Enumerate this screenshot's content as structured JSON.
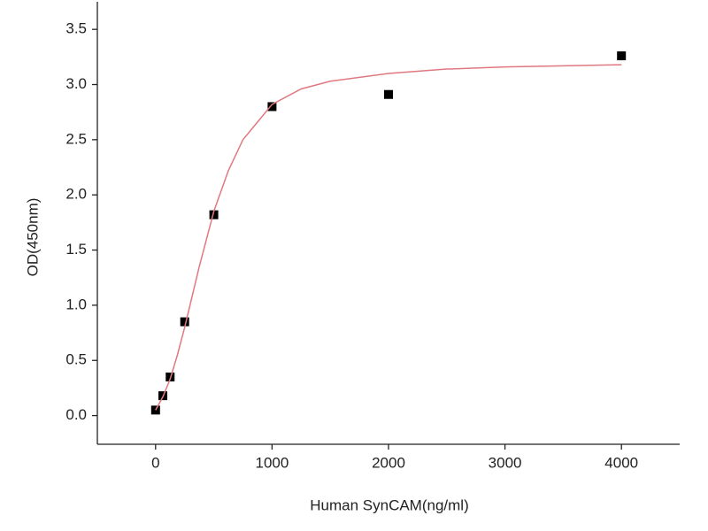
{
  "chart_data": {
    "type": "scatter",
    "x_label": "Human SynCAM(ng/ml)",
    "y_label": "OD(450nm)",
    "xlim": [
      -500,
      4500
    ],
    "ylim": [
      -0.26,
      3.75
    ],
    "xticks": [
      0,
      1000,
      2000,
      3000,
      4000
    ],
    "yticks": [
      {
        "value": 0,
        "label": "0.0"
      },
      0.5,
      {
        "value": 1,
        "label": "1.0"
      },
      1.5,
      {
        "value": 2,
        "label": "2.0"
      },
      2.5,
      {
        "value": 3,
        "label": "3.0"
      },
      3.5
    ],
    "series": [
      {
        "style": "points",
        "color": "#000000",
        "x": [
          0,
          62.5,
          125,
          250,
          500,
          1000,
          2000,
          4000
        ],
        "values": [
          0.05,
          0.18,
          0.35,
          0.85,
          1.82,
          2.8,
          2.91,
          3.26
        ]
      },
      {
        "style": "line",
        "color": "#e07880",
        "x": [
          0,
          62.5,
          125,
          187.5,
          250,
          375,
          500,
          625,
          750,
          1000,
          1250,
          1500,
          2000,
          2500,
          3000,
          3500,
          4000
        ],
        "values": [
          0.05,
          0.17,
          0.33,
          0.55,
          0.8,
          1.35,
          1.85,
          2.22,
          2.5,
          2.82,
          2.96,
          3.03,
          3.1,
          3.14,
          3.16,
          3.17,
          3.18
        ]
      }
    ]
  }
}
